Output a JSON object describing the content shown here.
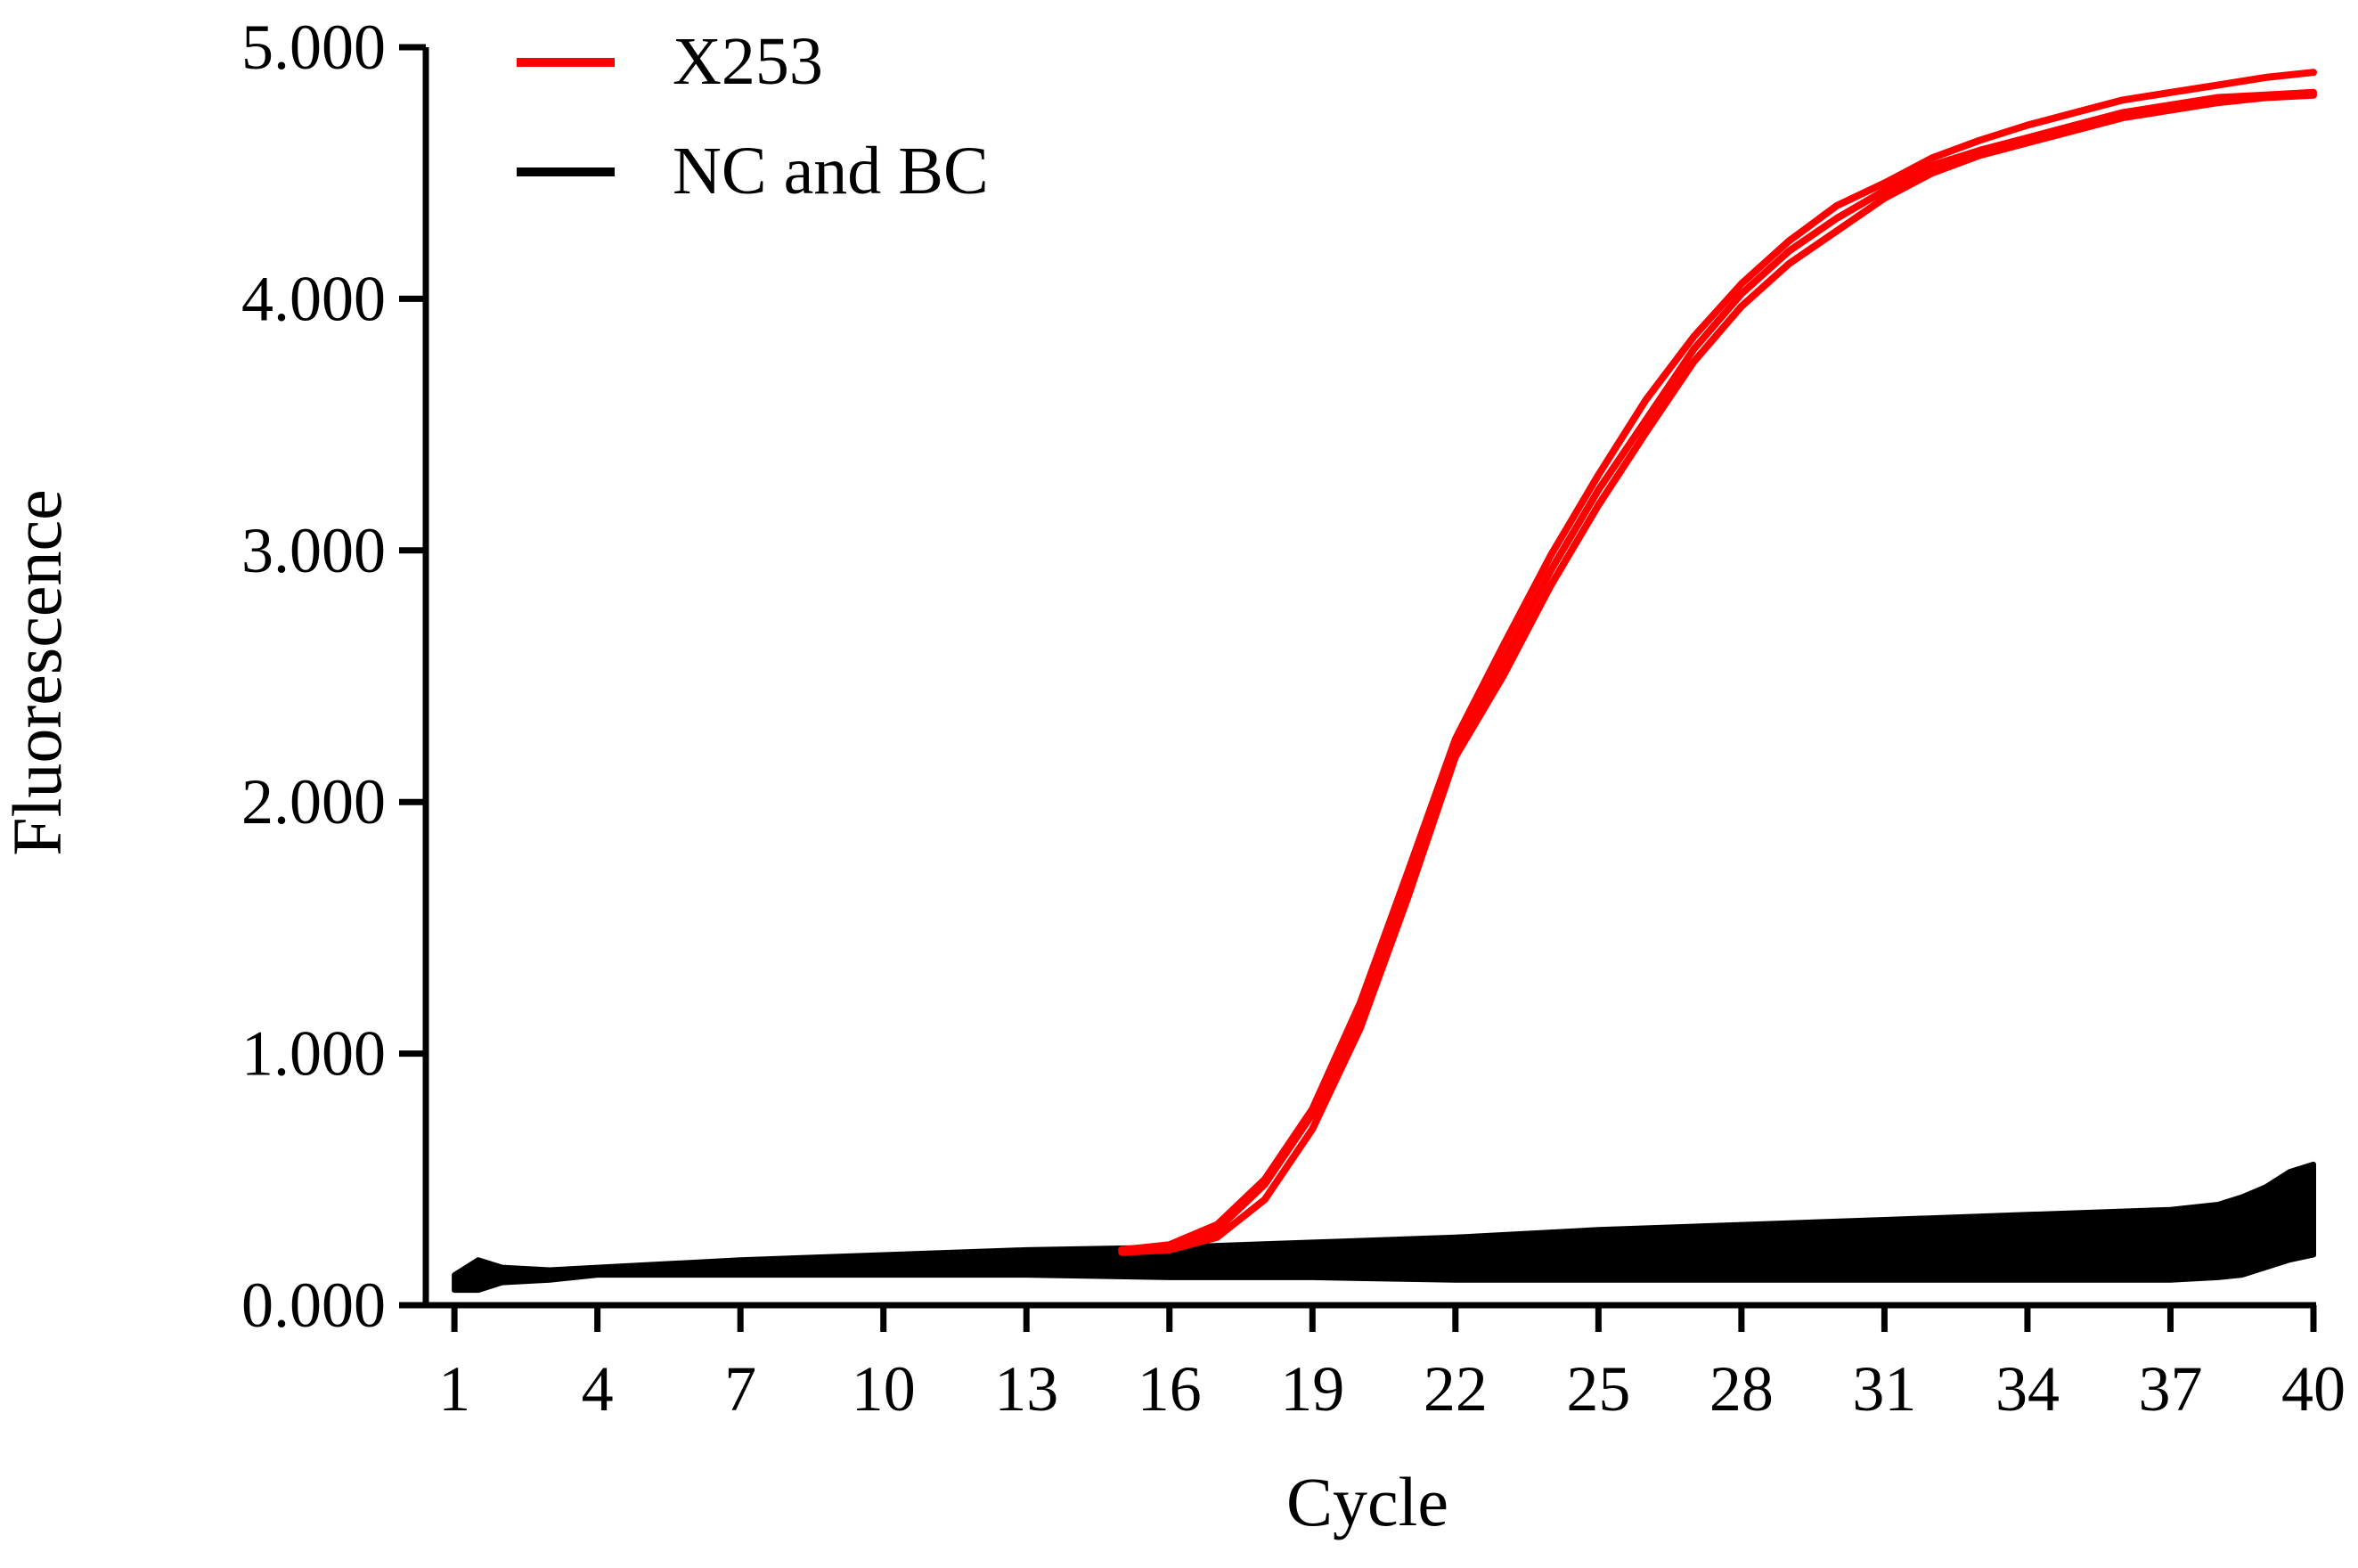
{
  "chart_data": {
    "type": "line",
    "title": "",
    "xlabel": "Cycle",
    "ylabel": "Fluorescence",
    "xlim": [
      0.4,
      40
    ],
    "ylim": [
      0,
      5
    ],
    "x_ticks": [
      1,
      4,
      7,
      10,
      13,
      16,
      19,
      22,
      25,
      28,
      31,
      34,
      37,
      40
    ],
    "x_tick_labels": [
      "1",
      "4",
      "7",
      "10",
      "13",
      "16",
      "19",
      "22",
      "25",
      "28",
      "31",
      "34",
      "37",
      "40"
    ],
    "y_ticks": [
      0,
      1,
      2,
      3,
      4,
      5
    ],
    "y_tick_labels": [
      "0.000",
      "1.000",
      "2.000",
      "3.000",
      "4.000",
      "5.000"
    ],
    "legend": {
      "position": "top-left",
      "entries": [
        {
          "label": "X253",
          "color": "#ff0000"
        },
        {
          "label": "NC and BC",
          "color": "#000000"
        }
      ]
    },
    "series": [
      {
        "name": "X253",
        "color": "#ff0000",
        "x": [
          15,
          16,
          17,
          18,
          19,
          20,
          21,
          22,
          23,
          24,
          25,
          26,
          27,
          28,
          29,
          30,
          31,
          32,
          33,
          34,
          35,
          36,
          37,
          38,
          39,
          40
        ],
        "values": [
          0.22,
          0.24,
          0.32,
          0.5,
          0.78,
          1.2,
          1.72,
          2.25,
          2.62,
          2.98,
          3.3,
          3.6,
          3.85,
          4.06,
          4.23,
          4.37,
          4.46,
          4.56,
          4.63,
          4.69,
          4.74,
          4.79,
          4.82,
          4.85,
          4.88,
          4.9
        ]
      },
      {
        "name": "X253",
        "color": "#ff0000",
        "x": [
          15,
          16,
          17,
          18,
          19,
          20,
          21,
          22,
          23,
          24,
          25,
          26,
          27,
          28,
          29,
          30,
          31,
          32,
          33,
          34,
          35,
          36,
          37,
          38,
          39,
          40
        ],
        "values": [
          0.22,
          0.23,
          0.3,
          0.48,
          0.76,
          1.16,
          1.68,
          2.2,
          2.56,
          2.92,
          3.24,
          3.52,
          3.8,
          4.02,
          4.19,
          4.32,
          4.43,
          4.53,
          4.59,
          4.64,
          4.69,
          4.74,
          4.77,
          4.8,
          4.81,
          4.82
        ]
      },
      {
        "name": "X253",
        "color": "#ff0000",
        "x": [
          15,
          16,
          17,
          18,
          19,
          20,
          21,
          22,
          23,
          24,
          25,
          26,
          27,
          28,
          29,
          30,
          31,
          32,
          33,
          34,
          35,
          36,
          37,
          38,
          39,
          40
        ],
        "values": [
          0.21,
          0.22,
          0.27,
          0.42,
          0.7,
          1.1,
          1.62,
          2.18,
          2.5,
          2.86,
          3.18,
          3.47,
          3.75,
          3.97,
          4.14,
          4.27,
          4.4,
          4.5,
          4.57,
          4.62,
          4.67,
          4.72,
          4.75,
          4.78,
          4.8,
          4.81
        ]
      }
    ],
    "background_band": {
      "name": "NC and BC",
      "color": "#000000",
      "x": [
        1,
        1.5,
        2,
        3,
        4,
        7,
        10,
        13,
        16,
        19,
        22,
        25,
        28,
        31,
        34,
        37,
        38,
        38.5,
        39,
        39.5,
        40
      ],
      "upper": [
        0.12,
        0.18,
        0.15,
        0.14,
        0.15,
        0.18,
        0.2,
        0.22,
        0.23,
        0.25,
        0.27,
        0.3,
        0.32,
        0.34,
        0.36,
        0.38,
        0.4,
        0.43,
        0.47,
        0.53,
        0.56
      ],
      "lower": [
        0.06,
        0.06,
        0.09,
        0.1,
        0.12,
        0.12,
        0.12,
        0.12,
        0.11,
        0.11,
        0.1,
        0.1,
        0.1,
        0.1,
        0.1,
        0.1,
        0.11,
        0.12,
        0.15,
        0.18,
        0.2
      ]
    }
  }
}
